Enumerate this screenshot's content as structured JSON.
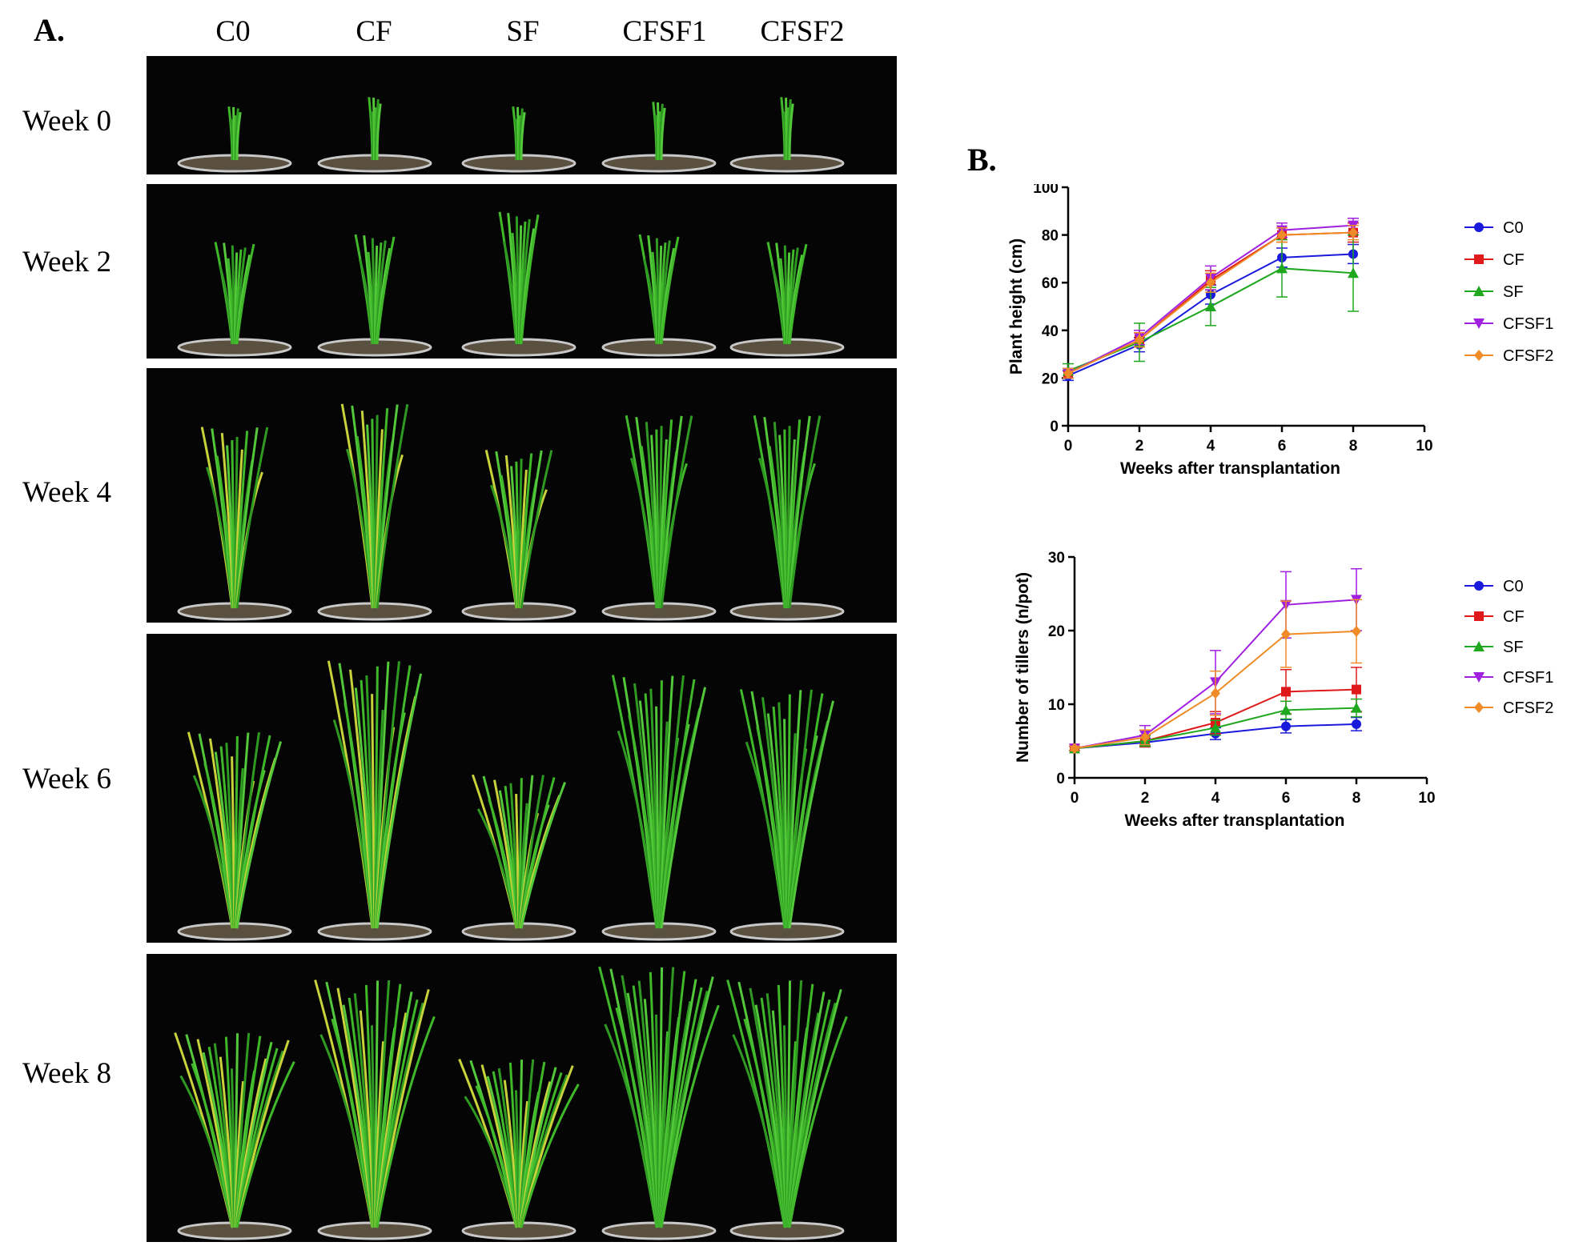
{
  "panel_a": {
    "label": "A.",
    "columns": [
      "C0",
      "CF",
      "SF",
      "CFSF1",
      "CFSF2"
    ],
    "rows": [
      {
        "week": "Week 0",
        "heights": [
          0.6,
          0.7,
          0.6,
          0.65,
          0.7
        ]
      },
      {
        "week": "Week 2",
        "heights": [
          0.7,
          0.75,
          0.9,
          0.75,
          0.7
        ]
      },
      {
        "week": "Week 4",
        "heights": [
          0.8,
          0.9,
          0.7,
          0.85,
          0.85
        ]
      },
      {
        "week": "Week 6",
        "heights": [
          0.7,
          0.95,
          0.55,
          0.9,
          0.85
        ]
      },
      {
        "week": "Week 8",
        "heights": [
          0.75,
          0.95,
          0.65,
          1.0,
          0.95
        ]
      }
    ]
  },
  "panel_b": {
    "label": "B."
  },
  "colors": {
    "C0": "#1a1adc",
    "CF": "#e01a1a",
    "SF": "#1fa81f",
    "CFSF1": "#a020e0",
    "CFSF2": "#f08c28"
  },
  "chart_data": [
    {
      "type": "line",
      "xlabel": "Weeks after transplantation",
      "ylabel": "Plant height (cm)",
      "xlim": [
        0,
        10
      ],
      "ylim": [
        0,
        100
      ],
      "xticks": [
        0,
        2,
        4,
        6,
        8,
        10
      ],
      "yticks": [
        0,
        20,
        40,
        60,
        80,
        100
      ],
      "x": [
        0,
        2,
        4,
        6,
        8
      ],
      "legend_position": "right",
      "series": [
        {
          "name": "C0",
          "values": [
            21,
            34,
            55,
            70.5,
            72
          ],
          "errors": [
            2,
            3,
            4,
            4,
            4
          ]
        },
        {
          "name": "CF",
          "values": [
            22,
            36,
            61,
            80,
            81
          ],
          "errors": [
            2,
            3,
            4,
            3,
            4
          ]
        },
        {
          "name": "SF",
          "values": [
            23,
            35,
            50,
            66,
            64
          ],
          "errors": [
            3,
            8,
            8,
            12,
            16
          ]
        },
        {
          "name": "CFSF1",
          "values": [
            22,
            37,
            62,
            82,
            84
          ],
          "errors": [
            2,
            3,
            5,
            3,
            3
          ]
        },
        {
          "name": "CFSF2",
          "values": [
            22,
            36,
            60,
            80,
            81
          ],
          "errors": [
            2,
            3,
            4,
            3,
            3
          ]
        }
      ]
    },
    {
      "type": "line",
      "xlabel": "Weeks after transplantation",
      "ylabel": "Number of tillers (n/pot)",
      "xlim": [
        0,
        10
      ],
      "ylim": [
        0,
        30
      ],
      "xticks": [
        0,
        2,
        4,
        6,
        8,
        10
      ],
      "yticks": [
        0,
        10,
        20,
        30
      ],
      "x": [
        0,
        2,
        4,
        6,
        8
      ],
      "legend_position": "right",
      "series": [
        {
          "name": "C0",
          "values": [
            4,
            4.8,
            6,
            7,
            7.3
          ],
          "errors": [
            0.3,
            0.6,
            0.8,
            0.9,
            0.9
          ]
        },
        {
          "name": "CF",
          "values": [
            4,
            5,
            7.5,
            11.7,
            12
          ],
          "errors": [
            0.3,
            0.8,
            1.5,
            3,
            3
          ]
        },
        {
          "name": "SF",
          "values": [
            4,
            5,
            6.8,
            9.2,
            9.5
          ],
          "errors": [
            0.3,
            0.7,
            1,
            1.2,
            1.2
          ]
        },
        {
          "name": "CFSF1",
          "values": [
            4,
            5.8,
            13,
            23.5,
            24.2
          ],
          "errors": [
            0.3,
            1.3,
            4.3,
            4.5,
            4.2
          ]
        },
        {
          "name": "CFSF2",
          "values": [
            4,
            5.5,
            11.5,
            19.5,
            19.9
          ],
          "errors": [
            0.3,
            1,
            3,
            4.5,
            4.3
          ]
        }
      ]
    }
  ]
}
